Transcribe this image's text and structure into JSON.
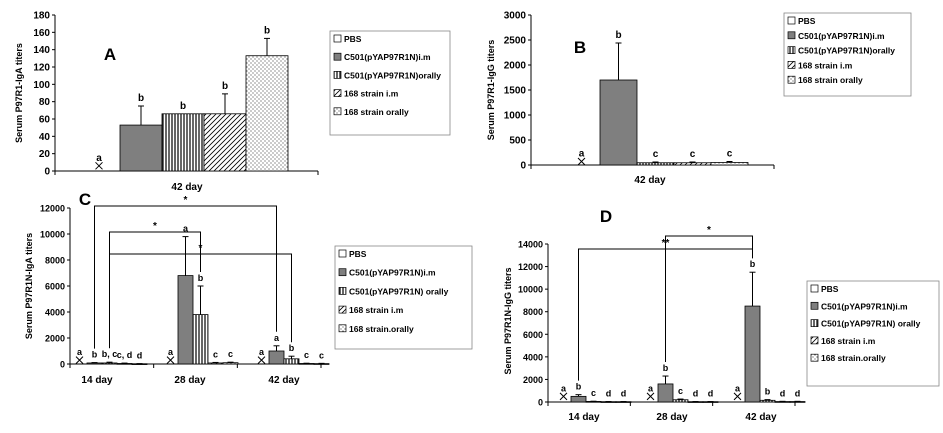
{
  "chart_data": [
    {
      "panel": "A",
      "type": "bar",
      "ylabel": "Serum P97R1-IgA titers",
      "ylim": [
        0,
        180
      ],
      "yticks": [
        0,
        20,
        40,
        60,
        80,
        100,
        120,
        140,
        160,
        180
      ],
      "categories": [
        "42 day"
      ],
      "series": [
        {
          "name": "PBS",
          "values": [
            6
          ],
          "errors": [
            0
          ],
          "letters": [
            "a"
          ]
        },
        {
          "name": "C501(pYAP97R1N)i.m",
          "values": [
            53
          ],
          "errors": [
            22
          ],
          "letters": [
            "b"
          ]
        },
        {
          "name": "C501(pYAP97R1N)orally",
          "values": [
            66
          ],
          "errors": [
            0
          ],
          "letters": [
            "b"
          ]
        },
        {
          "name": "168 strain i.m",
          "values": [
            66
          ],
          "errors": [
            23
          ],
          "letters": [
            "b"
          ]
        },
        {
          "name": "168 strain orally",
          "values": [
            133
          ],
          "errors": [
            20
          ],
          "letters": [
            "b"
          ]
        }
      ],
      "significance": []
    },
    {
      "panel": "B",
      "type": "bar",
      "ylabel": "Serum P97R1-IgG titers",
      "ylim": [
        0,
        3000
      ],
      "yticks": [
        0,
        500,
        1000,
        1500,
        2000,
        2500,
        3000
      ],
      "categories": [
        "42 day"
      ],
      "series": [
        {
          "name": "PBS",
          "values": [
            70
          ],
          "errors": [
            0
          ],
          "letters": [
            "a"
          ]
        },
        {
          "name": "C501(pYAP97R1N)i.m",
          "values": [
            1700
          ],
          "errors": [
            740
          ],
          "letters": [
            "b"
          ]
        },
        {
          "name": "C501(pYAP97R1N)orally",
          "values": [
            45
          ],
          "errors": [
            15
          ],
          "letters": [
            "c"
          ]
        },
        {
          "name": "168 strain i.m",
          "values": [
            45
          ],
          "errors": [
            15
          ],
          "letters": [
            "c"
          ]
        },
        {
          "name": "168 strain orally",
          "values": [
            50
          ],
          "errors": [
            20
          ],
          "letters": [
            "c"
          ]
        }
      ],
      "significance": []
    },
    {
      "panel": "C",
      "type": "bar",
      "ylabel": "Serum P97R1N-IgA titers",
      "ylim": [
        0,
        12000
      ],
      "yticks": [
        0,
        2000,
        4000,
        6000,
        8000,
        10000,
        12000
      ],
      "categories": [
        "14 day",
        "28 day",
        "42 day"
      ],
      "series": [
        {
          "name": "PBS",
          "values": [
            300,
            300,
            300
          ],
          "errors": [
            0,
            0,
            0
          ],
          "letters": [
            "a",
            "a",
            "a"
          ]
        },
        {
          "name": "C501(pYAP97R1N)i.m",
          "values": [
            80,
            6800,
            1000
          ],
          "errors": [
            30,
            3000,
            400
          ],
          "letters": [
            "b",
            "a",
            "a"
          ]
        },
        {
          "name": "C501(pYAP97R1N) orally",
          "values": [
            80,
            3800,
            400
          ],
          "errors": [
            60,
            2200,
            200
          ],
          "letters": [
            "b, c",
            "b",
            "b"
          ]
        },
        {
          "name": "168 strain i.m",
          "values": [
            40,
            80,
            40
          ],
          "errors": [
            30,
            40,
            20
          ],
          "letters": [
            "c, d",
            "c",
            "c"
          ]
        },
        {
          "name": "168 strain.orally",
          "values": [
            20,
            100,
            30
          ],
          "errors": [
            10,
            40,
            20
          ],
          "letters": [
            "d",
            "c",
            "c"
          ]
        }
      ],
      "significance": [
        {
          "label": "*",
          "from": [
            0,
            1
          ],
          "to": [
            2,
            1
          ]
        },
        {
          "label": "*",
          "from": [
            0,
            2
          ],
          "to": [
            1,
            2
          ]
        },
        {
          "label": "*",
          "from": [
            0,
            2
          ],
          "to": [
            2,
            2
          ]
        }
      ]
    },
    {
      "panel": "D",
      "type": "bar",
      "ylabel": "Serum P97R1N-IgG titers",
      "ylim": [
        0,
        14000
      ],
      "yticks": [
        0,
        2000,
        4000,
        6000,
        8000,
        10000,
        12000,
        14000
      ],
      "categories": [
        "14 day",
        "28 day",
        "42 day"
      ],
      "series": [
        {
          "name": "PBS",
          "values": [
            500,
            500,
            500
          ],
          "errors": [
            0,
            0,
            0
          ],
          "letters": [
            "a",
            "a",
            "a"
          ]
        },
        {
          "name": "C501(pYAP97R1N)i.m",
          "values": [
            500,
            1600,
            8500
          ],
          "errors": [
            150,
            700,
            3000
          ],
          "letters": [
            "b",
            "b",
            "b"
          ]
        },
        {
          "name": "C501(pYAP97R1N) orally",
          "values": [
            50,
            200,
            150
          ],
          "errors": [
            20,
            60,
            60
          ],
          "letters": [
            "c",
            "c",
            "b"
          ]
        },
        {
          "name": "168 strain i.m",
          "values": [
            30,
            30,
            40
          ],
          "errors": [
            10,
            10,
            20
          ],
          "letters": [
            "d",
            "d",
            "d"
          ]
        },
        {
          "name": "168 strain.orally",
          "values": [
            30,
            30,
            40
          ],
          "errors": [
            10,
            10,
            20
          ],
          "letters": [
            "d",
            "d",
            "d"
          ]
        }
      ],
      "significance": [
        {
          "label": "**",
          "from": [
            0,
            1
          ],
          "to": [
            2,
            1
          ]
        },
        {
          "label": "*",
          "from": [
            1,
            1
          ],
          "to": [
            2,
            1
          ]
        }
      ]
    }
  ]
}
